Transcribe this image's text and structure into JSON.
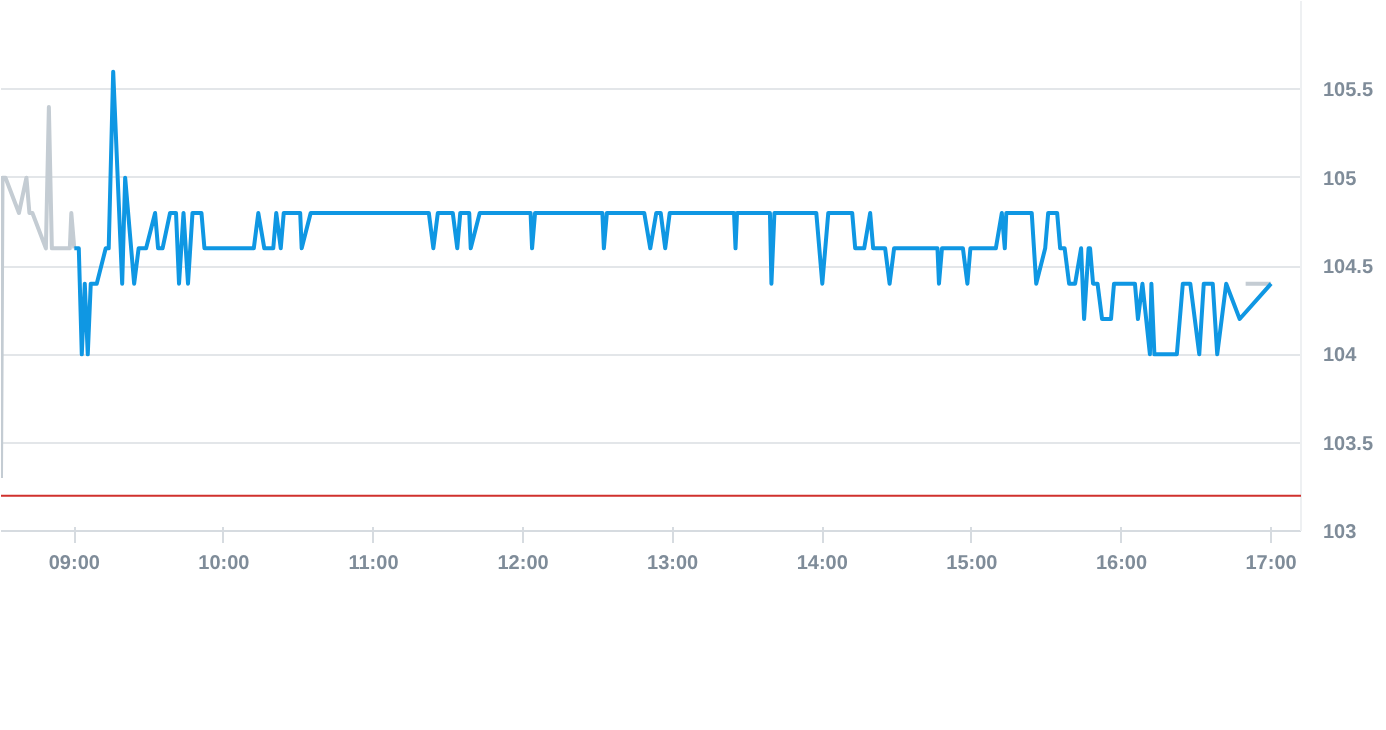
{
  "chart_data": {
    "type": "line",
    "xlim": [
      8.51,
      17.2
    ],
    "ylim": [
      103,
      106
    ],
    "xticks": [
      {
        "value": 9,
        "label": "09:00"
      },
      {
        "value": 10,
        "label": "10:00"
      },
      {
        "value": 11,
        "label": "11:00"
      },
      {
        "value": 12,
        "label": "12:00"
      },
      {
        "value": 13,
        "label": "13:00"
      },
      {
        "value": 14,
        "label": "14:00"
      },
      {
        "value": 15,
        "label": "15:00"
      },
      {
        "value": 16,
        "label": "16:00"
      },
      {
        "value": 17,
        "label": "17:00"
      }
    ],
    "yticks": [
      103,
      103.5,
      104,
      104.5,
      105,
      105.5
    ],
    "grid": "y",
    "line_style": "solid",
    "ref_lines": [
      {
        "axis": "y",
        "value": 103.2,
        "color": "#d0312d"
      }
    ],
    "series": [
      {
        "color": "#c4ccd3",
        "x": [
          8.51,
          8.52,
          8.54,
          8.63,
          8.68,
          8.7,
          8.72,
          8.81,
          8.83,
          8.85,
          8.97,
          8.98,
          9.0,
          16.5,
          16.83,
          17.0
        ],
        "values": [
          103.3,
          105.0,
          105.0,
          104.8,
          105.0,
          104.8,
          104.8,
          104.6,
          105.4,
          104.6,
          104.6,
          104.8,
          104.6,
          null,
          104.4,
          104.4
        ]
      },
      {
        "color": "#0f97e3",
        "x": [
          9.0,
          9.03,
          9.05,
          9.07,
          9.09,
          9.11,
          9.15,
          9.21,
          9.23,
          9.26,
          9.32,
          9.34,
          9.4,
          9.43,
          9.48,
          9.54,
          9.56,
          9.59,
          9.64,
          9.68,
          9.7,
          9.73,
          9.76,
          9.79,
          9.85,
          9.87,
          10.2,
          10.23,
          10.27,
          10.33,
          10.35,
          10.38,
          10.4,
          10.51,
          10.52,
          10.58,
          11.37,
          11.4,
          11.43,
          11.53,
          11.56,
          11.58,
          11.64,
          11.65,
          11.71,
          12.05,
          12.06,
          12.08,
          12.53,
          12.54,
          12.56,
          12.81,
          12.85,
          12.89,
          12.92,
          12.95,
          12.98,
          13.41,
          13.42,
          13.43,
          13.65,
          13.66,
          13.68,
          13.96,
          14.0,
          14.04,
          14.2,
          14.22,
          14.28,
          14.32,
          14.34,
          14.42,
          14.45,
          14.48,
          14.77,
          14.78,
          14.8,
          14.94,
          14.97,
          14.99,
          15.16,
          15.2,
          15.22,
          15.23,
          15.4,
          15.43,
          15.49,
          15.51,
          15.57,
          15.59,
          15.62,
          15.65,
          15.69,
          15.73,
          15.75,
          15.78,
          15.79,
          15.81,
          15.84,
          15.87,
          15.93,
          15.95,
          16.09,
          16.11,
          16.14,
          16.19,
          16.2,
          16.22,
          16.37,
          16.41,
          16.46,
          16.52,
          16.55,
          16.61,
          16.64,
          16.7,
          16.79,
          17.0
        ],
        "values": [
          104.6,
          104.6,
          104.0,
          104.4,
          104.0,
          104.4,
          104.4,
          104.6,
          104.6,
          105.6,
          104.4,
          105.0,
          104.4,
          104.6,
          104.6,
          104.8,
          104.6,
          104.6,
          104.8,
          104.8,
          104.4,
          104.8,
          104.4,
          104.8,
          104.8,
          104.6,
          104.6,
          104.8,
          104.6,
          104.6,
          104.8,
          104.6,
          104.8,
          104.8,
          104.6,
          104.8,
          104.8,
          104.6,
          104.8,
          104.8,
          104.6,
          104.8,
          104.8,
          104.6,
          104.8,
          104.8,
          104.6,
          104.8,
          104.8,
          104.6,
          104.8,
          104.8,
          104.6,
          104.8,
          104.8,
          104.6,
          104.8,
          104.8,
          104.6,
          104.8,
          104.8,
          104.4,
          104.8,
          104.8,
          104.4,
          104.8,
          104.8,
          104.6,
          104.6,
          104.8,
          104.6,
          104.6,
          104.4,
          104.6,
          104.6,
          104.4,
          104.6,
          104.6,
          104.4,
          104.6,
          104.6,
          104.8,
          104.6,
          104.8,
          104.8,
          104.4,
          104.6,
          104.8,
          104.8,
          104.6,
          104.6,
          104.4,
          104.4,
          104.6,
          104.2,
          104.6,
          104.6,
          104.4,
          104.4,
          104.2,
          104.2,
          104.4,
          104.4,
          104.2,
          104.4,
          104.0,
          104.4,
          104.0,
          104.0,
          104.4,
          104.4,
          104.0,
          104.4,
          104.4,
          104.0,
          104.4,
          104.2,
          104.4
        ]
      }
    ]
  }
}
